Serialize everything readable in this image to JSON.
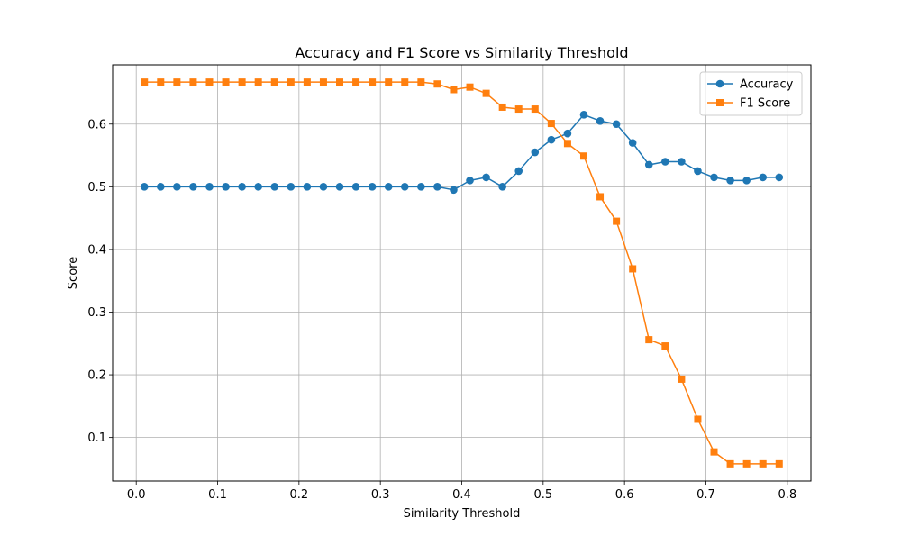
{
  "chart_data": {
    "type": "line",
    "title": "Accuracy and F1 Score vs Similarity Threshold",
    "xlabel": "Similarity Threshold",
    "ylabel": "Score",
    "xlim": [
      -0.029,
      0.829
    ],
    "ylim": [
      0.0305,
      0.6945
    ],
    "xticks": [
      0.0,
      0.1,
      0.2,
      0.3,
      0.4,
      0.5,
      0.6,
      0.7,
      0.8
    ],
    "xtick_labels": [
      "0.0",
      "0.1",
      "0.2",
      "0.3",
      "0.4",
      "0.5",
      "0.6",
      "0.7",
      "0.8"
    ],
    "yticks": [
      0.1,
      0.2,
      0.3,
      0.4,
      0.5,
      0.6
    ],
    "ytick_labels": [
      "0.1",
      "0.2",
      "0.3",
      "0.4",
      "0.5",
      "0.6"
    ],
    "grid": true,
    "legend_position": "upper right",
    "x": [
      0.01,
      0.03,
      0.05,
      0.07,
      0.09,
      0.11,
      0.13,
      0.15,
      0.17,
      0.19,
      0.21,
      0.23,
      0.25,
      0.27,
      0.29,
      0.31,
      0.33,
      0.35,
      0.37,
      0.39,
      0.41,
      0.43,
      0.45,
      0.47,
      0.49,
      0.51,
      0.53,
      0.55,
      0.57,
      0.59,
      0.61,
      0.63,
      0.65,
      0.67,
      0.69,
      0.71,
      0.73,
      0.75,
      0.77,
      0.79
    ],
    "series": [
      {
        "name": "Accuracy",
        "color": "#1f77b4",
        "marker": "circle",
        "values": [
          0.5,
          0.5,
          0.5,
          0.5,
          0.5,
          0.5,
          0.5,
          0.5,
          0.5,
          0.5,
          0.5,
          0.5,
          0.5,
          0.5,
          0.5,
          0.5,
          0.5,
          0.5,
          0.5,
          0.495,
          0.51,
          0.515,
          0.5,
          0.525,
          0.555,
          0.575,
          0.585,
          0.615,
          0.605,
          0.6,
          0.57,
          0.535,
          0.54,
          0.54,
          0.525,
          0.515,
          0.51,
          0.51,
          0.515,
          0.515
        ]
      },
      {
        "name": "F1 Score",
        "color": "#ff7f0e",
        "marker": "square",
        "values": [
          0.667,
          0.667,
          0.667,
          0.667,
          0.667,
          0.667,
          0.667,
          0.667,
          0.667,
          0.667,
          0.667,
          0.667,
          0.667,
          0.667,
          0.667,
          0.667,
          0.667,
          0.667,
          0.664,
          0.655,
          0.659,
          0.649,
          0.627,
          0.624,
          0.624,
          0.601,
          0.569,
          0.549,
          0.484,
          0.445,
          0.369,
          0.256,
          0.246,
          0.193,
          0.129,
          0.077,
          0.058,
          0.058,
          0.058,
          0.058
        ]
      }
    ]
  }
}
